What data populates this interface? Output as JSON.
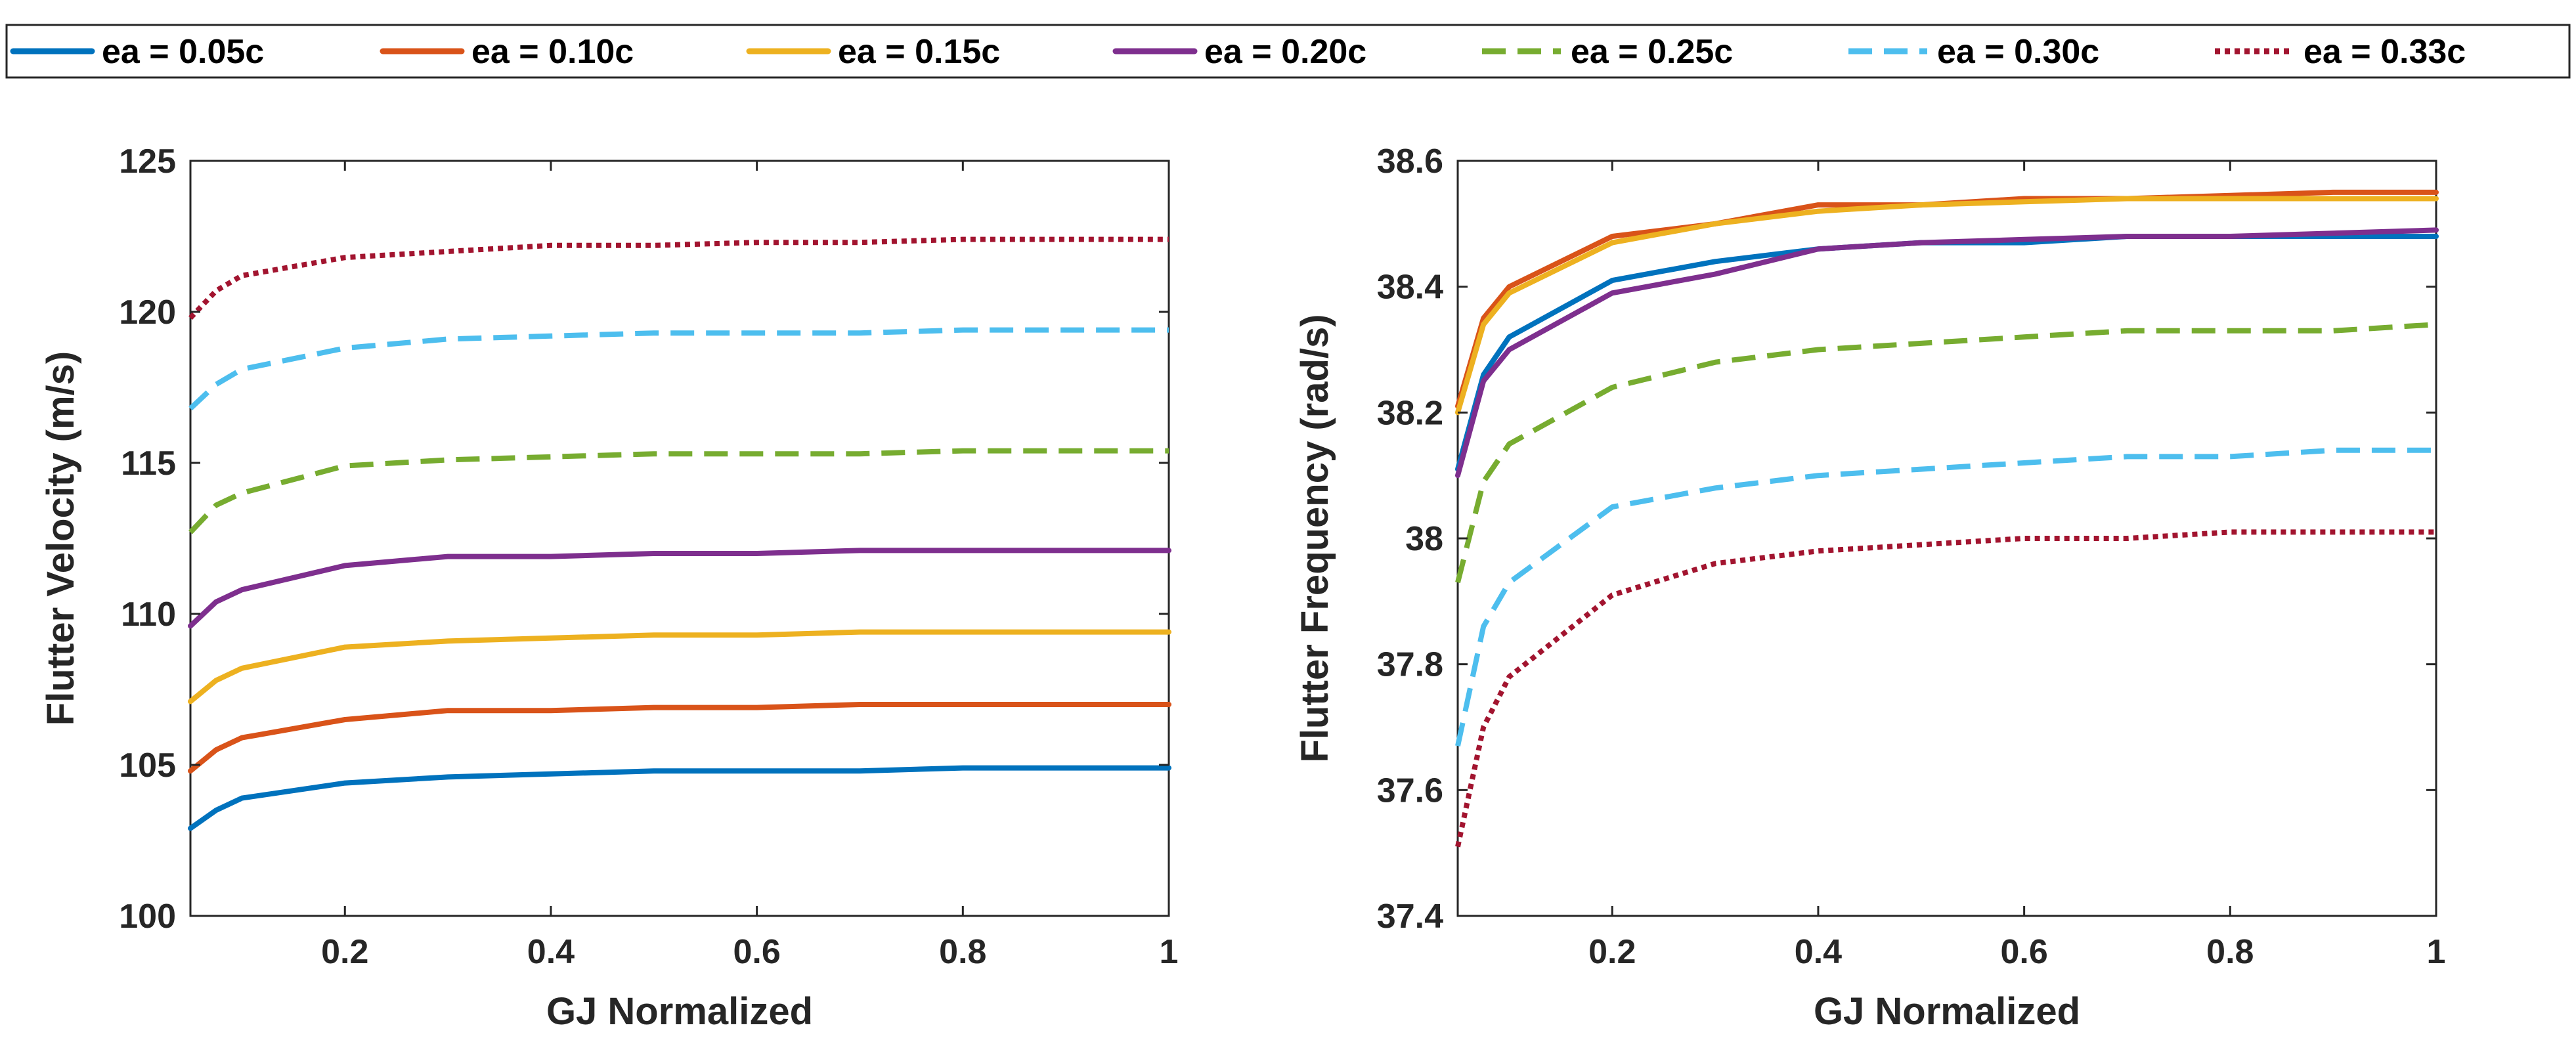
{
  "legend": {
    "position": "top-center",
    "entries": [
      {
        "label": "ea = 0.05c",
        "color": "#0072BD",
        "style": "solid"
      },
      {
        "label": "ea = 0.10c",
        "color": "#D95319",
        "style": "solid"
      },
      {
        "label": "ea = 0.15c",
        "color": "#EDB120",
        "style": "solid"
      },
      {
        "label": "ea = 0.20c",
        "color": "#7E2F8E",
        "style": "solid"
      },
      {
        "label": "ea = 0.25c",
        "color": "#77AC30",
        "style": "dashed"
      },
      {
        "label": "ea = 0.30c",
        "color": "#4DBEEE",
        "style": "dashed"
      },
      {
        "label": "ea = 0.33c",
        "color": "#A2142F",
        "style": "dotted"
      }
    ]
  },
  "chart_data": [
    {
      "type": "line",
      "title": "",
      "xlabel": "GJ Normalized",
      "ylabel": "Flutter Velocity (m/s)",
      "xlim": [
        0.05,
        1
      ],
      "ylim": [
        100,
        125
      ],
      "xticks": [
        0.2,
        0.4,
        0.6,
        0.8,
        1
      ],
      "xtick_labels": [
        "0.2",
        "0.4",
        "0.6",
        "0.8",
        "1"
      ],
      "yticks": [
        100,
        105,
        110,
        115,
        120,
        125
      ],
      "ytick_labels": [
        "100",
        "105",
        "110",
        "115",
        "120",
        "125"
      ],
      "grid": false,
      "x": [
        0.05,
        0.075,
        0.1,
        0.2,
        0.3,
        0.4,
        0.5,
        0.6,
        0.7,
        0.8,
        0.9,
        1.0
      ],
      "series": [
        {
          "name": "ea = 0.05c",
          "values": [
            102.9,
            103.5,
            103.9,
            104.4,
            104.6,
            104.7,
            104.8,
            104.8,
            104.8,
            104.9,
            104.9,
            104.9
          ]
        },
        {
          "name": "ea = 0.10c",
          "values": [
            104.8,
            105.5,
            105.9,
            106.5,
            106.8,
            106.8,
            106.9,
            106.9,
            107.0,
            107.0,
            107.0,
            107.0
          ]
        },
        {
          "name": "ea = 0.15c",
          "values": [
            107.1,
            107.8,
            108.2,
            108.9,
            109.1,
            109.2,
            109.3,
            109.3,
            109.4,
            109.4,
            109.4,
            109.4
          ]
        },
        {
          "name": "ea = 0.20c",
          "values": [
            109.6,
            110.4,
            110.8,
            111.6,
            111.9,
            111.9,
            112.0,
            112.0,
            112.1,
            112.1,
            112.1,
            112.1
          ]
        },
        {
          "name": "ea = 0.25c",
          "values": [
            112.7,
            113.6,
            114.0,
            114.9,
            115.1,
            115.2,
            115.3,
            115.3,
            115.3,
            115.4,
            115.4,
            115.4
          ]
        },
        {
          "name": "ea = 0.30c",
          "values": [
            116.8,
            117.6,
            118.1,
            118.8,
            119.1,
            119.2,
            119.3,
            119.3,
            119.3,
            119.4,
            119.4,
            119.4
          ]
        },
        {
          "name": "ea = 0.33c",
          "values": [
            119.8,
            120.7,
            121.2,
            121.8,
            122.0,
            122.2,
            122.2,
            122.3,
            122.3,
            122.4,
            122.4,
            122.4
          ]
        }
      ]
    },
    {
      "type": "line",
      "title": "",
      "xlabel": "GJ Normalized",
      "ylabel": "Flutter Frequency (rad/s)",
      "xlim": [
        0.05,
        1
      ],
      "ylim": [
        37.4,
        38.6
      ],
      "xticks": [
        0.2,
        0.4,
        0.6,
        0.8,
        1
      ],
      "xtick_labels": [
        "0.2",
        "0.4",
        "0.6",
        "0.8",
        "1"
      ],
      "yticks": [
        37.4,
        37.6,
        37.8,
        38,
        38.2,
        38.4,
        38.6
      ],
      "ytick_labels": [
        "37.4",
        "37.6",
        "37.8",
        "38",
        "38.2",
        "38.4",
        "38.6"
      ],
      "grid": false,
      "x": [
        0.05,
        0.075,
        0.1,
        0.2,
        0.3,
        0.4,
        0.5,
        0.6,
        0.7,
        0.8,
        0.9,
        1.0
      ],
      "series": [
        {
          "name": "ea = 0.05c",
          "values": [
            38.11,
            38.26,
            38.32,
            38.41,
            38.44,
            38.46,
            38.47,
            38.47,
            38.48,
            38.48,
            38.48,
            38.48
          ]
        },
        {
          "name": "ea = 0.10c",
          "values": [
            38.21,
            38.35,
            38.4,
            38.48,
            38.5,
            38.53,
            38.53,
            38.54,
            38.54,
            38.545,
            38.55,
            38.55
          ]
        },
        {
          "name": "ea = 0.15c",
          "values": [
            38.2,
            38.34,
            38.39,
            38.47,
            38.5,
            38.52,
            38.53,
            38.535,
            38.54,
            38.54,
            38.54,
            38.54
          ]
        },
        {
          "name": "ea = 0.20c",
          "values": [
            38.1,
            38.25,
            38.3,
            38.39,
            38.42,
            38.46,
            38.47,
            38.475,
            38.48,
            38.48,
            38.485,
            38.49
          ]
        },
        {
          "name": "ea = 0.25c",
          "values": [
            37.93,
            38.09,
            38.15,
            38.24,
            38.28,
            38.3,
            38.31,
            38.32,
            38.33,
            38.33,
            38.33,
            38.34
          ]
        },
        {
          "name": "ea = 0.30c",
          "values": [
            37.67,
            37.86,
            37.93,
            38.05,
            38.08,
            38.1,
            38.11,
            38.12,
            38.13,
            38.13,
            38.14,
            38.14
          ]
        },
        {
          "name": "ea = 0.33c",
          "values": [
            37.51,
            37.7,
            37.78,
            37.91,
            37.96,
            37.98,
            37.99,
            38.0,
            38.0,
            38.01,
            38.01,
            38.01
          ]
        }
      ]
    }
  ]
}
